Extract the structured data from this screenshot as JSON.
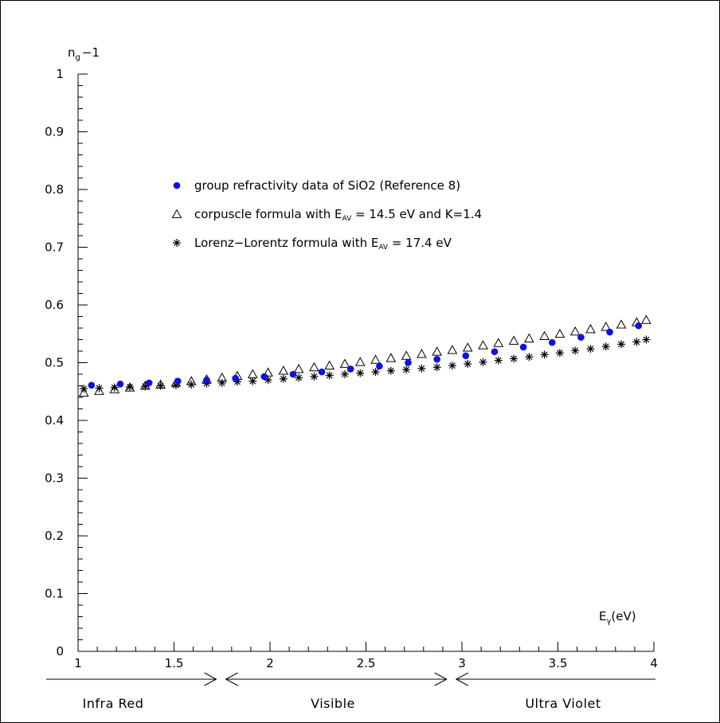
{
  "chart_data": {
    "type": "scatter",
    "xlabel": {
      "main": "E",
      "sub": "γ",
      "tail": "(eV)"
    },
    "ylabel": {
      "main": "n",
      "sub": "g",
      "tail": "−1"
    },
    "xlim": [
      1,
      4
    ],
    "ylim": [
      0,
      1
    ],
    "x_ticks": [
      "1",
      "1.5",
      "2",
      "2.5",
      "3",
      "3.5",
      "4"
    ],
    "y_ticks": [
      "0",
      "0.1",
      "0.2",
      "0.3",
      "0.4",
      "0.5",
      "0.6",
      "0.7",
      "0.8",
      "0.9",
      "1"
    ],
    "grid": false,
    "legend_placement": "upper-center",
    "series": [
      {
        "key": "data",
        "marker": "filled-circle",
        "color": "#1010e0",
        "legend": {
          "pre": "group refractivity data of SiO2 (Reference 8)"
        },
        "x": [
          1.07,
          1.22,
          1.37,
          1.52,
          1.67,
          1.82,
          1.97,
          2.12,
          2.27,
          2.42,
          2.57,
          2.72,
          2.87,
          3.02,
          3.17,
          3.32,
          3.47,
          3.62,
          3.77,
          3.92
        ],
        "y": [
          0.461,
          0.463,
          0.465,
          0.468,
          0.47,
          0.473,
          0.476,
          0.48,
          0.484,
          0.489,
          0.494,
          0.5,
          0.506,
          0.512,
          0.519,
          0.527,
          0.535,
          0.544,
          0.553,
          0.564
        ]
      },
      {
        "key": "corpuscle",
        "marker": "open-triangle",
        "color": "#000000",
        "legend": {
          "pre": "corpuscle formula with E",
          "sub": "AV",
          "post": " = 14.5 eV and K=1.4"
        },
        "x": [
          1.03,
          1.11,
          1.19,
          1.27,
          1.35,
          1.43,
          1.51,
          1.59,
          1.67,
          1.75,
          1.83,
          1.91,
          1.99,
          2.07,
          2.15,
          2.23,
          2.31,
          2.39,
          2.47,
          2.55,
          2.63,
          2.71,
          2.79,
          2.87,
          2.95,
          3.03,
          3.11,
          3.19,
          3.27,
          3.35,
          3.43,
          3.51,
          3.59,
          3.67,
          3.75,
          3.83,
          3.91,
          3.96
        ],
        "y": [
          0.448,
          0.451,
          0.454,
          0.457,
          0.46,
          0.462,
          0.465,
          0.468,
          0.471,
          0.474,
          0.477,
          0.48,
          0.483,
          0.486,
          0.489,
          0.492,
          0.495,
          0.498,
          0.501,
          0.505,
          0.508,
          0.512,
          0.515,
          0.519,
          0.522,
          0.526,
          0.53,
          0.534,
          0.538,
          0.542,
          0.546,
          0.55,
          0.554,
          0.558,
          0.562,
          0.566,
          0.57,
          0.574
        ]
      },
      {
        "key": "lorenz",
        "marker": "asterisk",
        "color": "#000000",
        "legend": {
          "pre": "Lorenz−Lorentz formula with E",
          "sub": "AV",
          "post": " = 17.4 eV"
        },
        "x": [
          1.03,
          1.11,
          1.19,
          1.27,
          1.35,
          1.43,
          1.51,
          1.59,
          1.67,
          1.75,
          1.83,
          1.91,
          1.99,
          2.07,
          2.15,
          2.23,
          2.31,
          2.39,
          2.47,
          2.55,
          2.63,
          2.71,
          2.79,
          2.87,
          2.95,
          3.03,
          3.11,
          3.19,
          3.27,
          3.35,
          3.43,
          3.51,
          3.59,
          3.67,
          3.75,
          3.83,
          3.91,
          3.96
        ],
        "y": [
          0.455,
          0.456,
          0.457,
          0.458,
          0.459,
          0.46,
          0.461,
          0.462,
          0.464,
          0.465,
          0.467,
          0.468,
          0.47,
          0.472,
          0.474,
          0.476,
          0.478,
          0.48,
          0.482,
          0.484,
          0.486,
          0.488,
          0.49,
          0.492,
          0.495,
          0.498,
          0.501,
          0.504,
          0.507,
          0.51,
          0.514,
          0.517,
          0.521,
          0.524,
          0.528,
          0.532,
          0.536,
          0.54
        ]
      }
    ],
    "regions": [
      {
        "label": "Infra Red",
        "x_from": 1,
        "x_to": 1.72,
        "arrow": "right"
      },
      {
        "label": "Visible",
        "x_from": 1.77,
        "x_to": 2.92,
        "arrow": "both"
      },
      {
        "label": "Ultra Violet",
        "x_from": 2.97,
        "x_to": 4,
        "arrow": "left"
      }
    ]
  }
}
